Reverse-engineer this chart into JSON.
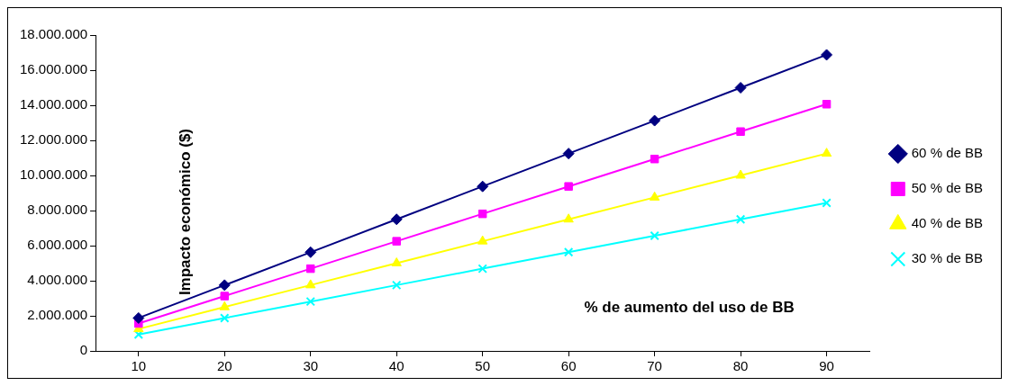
{
  "chart_data": {
    "type": "line",
    "xlabel": "% de aumento del uso de BB",
    "ylabel": "Impacto económico ($)",
    "categories": [
      "10",
      "20",
      "30",
      "40",
      "50",
      "60",
      "70",
      "80",
      "90"
    ],
    "ylim": [
      0,
      18000000
    ],
    "yticks": [
      {
        "value": 0,
        "label": "0"
      },
      {
        "value": 2000000,
        "label": "2.000.000"
      },
      {
        "value": 4000000,
        "label": "4.000.000"
      },
      {
        "value": 6000000,
        "label": "6.000.000"
      },
      {
        "value": 8000000,
        "label": "8.000.000"
      },
      {
        "value": 10000000,
        "label": "10.000.000"
      },
      {
        "value": 12000000,
        "label": "12.000.000"
      },
      {
        "value": 14000000,
        "label": "14.000.000"
      },
      {
        "value": 16000000,
        "label": "16.000.000"
      },
      {
        "value": 18000000,
        "label": "18.000.000"
      }
    ],
    "grid": false,
    "legend": "right",
    "line_style": "solid",
    "series": [
      {
        "name": "60 % de BB",
        "color": "#000080",
        "marker": "diamond",
        "values": [
          1875000,
          3750000,
          5625000,
          7500000,
          9375000,
          11250000,
          13125000,
          15000000,
          16875000
        ]
      },
      {
        "name": "50 % de BB",
        "color": "#ff00ff",
        "marker": "square",
        "values": [
          1562500,
          3125000,
          4687500,
          6250000,
          7812500,
          9375000,
          10937500,
          12500000,
          14062500
        ]
      },
      {
        "name": "40 % de BB",
        "color": "#ffff00",
        "marker": "triangle",
        "values": [
          1250000,
          2500000,
          3750000,
          5000000,
          6250000,
          7500000,
          8750000,
          10000000,
          11250000
        ]
      },
      {
        "name": "30 % de BB",
        "color": "#00ffff",
        "marker": "cross",
        "values": [
          937500,
          1875000,
          2812500,
          3750000,
          4687500,
          5625000,
          6562500,
          7500000,
          8437500
        ]
      }
    ]
  }
}
